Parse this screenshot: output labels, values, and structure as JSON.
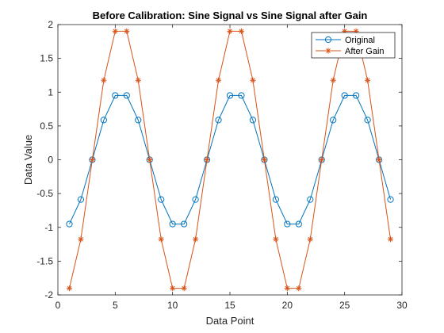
{
  "chart_data": {
    "type": "line",
    "title": "Before Calibration: Sine Signal vs Sine Signal after Gain",
    "xlabel": "Data Point",
    "ylabel": "Data Value",
    "xlim": [
      0,
      30
    ],
    "ylim": [
      -2,
      2
    ],
    "xticks": [
      0,
      5,
      10,
      15,
      20,
      25,
      30
    ],
    "yticks": [
      -2,
      -1.5,
      -1,
      -0.5,
      0,
      0.5,
      1,
      1.5,
      2
    ],
    "xtick_labels": [
      "0",
      "5",
      "10",
      "15",
      "20",
      "25",
      "30"
    ],
    "ytick_labels": [
      "-2",
      "-1.5",
      "-1",
      "-0.5",
      "0",
      "0.5",
      "1",
      "1.5",
      "2"
    ],
    "grid": false,
    "legend_position": "top-right",
    "x": [
      1,
      2,
      3,
      4,
      5,
      6,
      7,
      8,
      9,
      10,
      11,
      12,
      13,
      14,
      15,
      16,
      17,
      18,
      19,
      20,
      21,
      22,
      23,
      24,
      25,
      26,
      27,
      28,
      29
    ],
    "series": [
      {
        "name": "Original",
        "color": "#0072BD",
        "marker": "circle",
        "values": [
          -0.951,
          -0.588,
          0,
          0.588,
          0.951,
          0.951,
          0.588,
          0,
          -0.588,
          -0.951,
          -0.951,
          -0.588,
          0,
          0.588,
          0.951,
          0.951,
          0.588,
          0,
          -0.588,
          -0.951,
          -0.951,
          -0.588,
          0,
          0.588,
          0.951,
          0.951,
          0.588,
          0,
          -0.588
        ]
      },
      {
        "name": "After Gain",
        "color": "#D95319",
        "marker": "asterisk",
        "values": [
          -1.902,
          -1.176,
          0,
          1.176,
          1.902,
          1.902,
          1.176,
          0,
          -1.176,
          -1.902,
          -1.902,
          -1.176,
          0,
          1.176,
          1.902,
          1.902,
          1.176,
          0,
          -1.176,
          -1.902,
          -1.902,
          -1.176,
          0,
          1.176,
          1.902,
          1.902,
          1.176,
          0,
          -1.176
        ]
      }
    ]
  }
}
